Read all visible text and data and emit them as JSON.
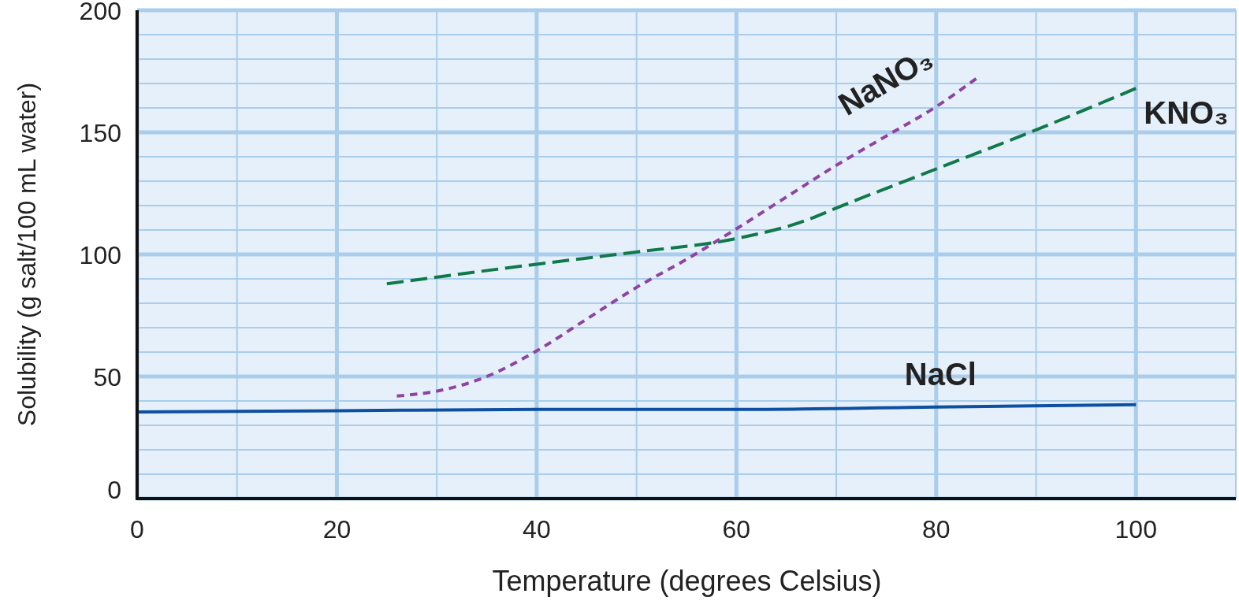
{
  "chart_data": {
    "type": "line",
    "xlabel": "Temperature (degrees Celsius)",
    "ylabel": "Solubility (g salt/100 mL water)",
    "xlim": [
      0,
      110
    ],
    "xticks": [
      0,
      {
        "value": 10,
        "label": null
      },
      20,
      {
        "value": 30,
        "label": null
      },
      40,
      {
        "value": 50,
        "label": null
      },
      60,
      {
        "value": 70,
        "label": null
      },
      80,
      {
        "value": 90,
        "label": null
      },
      100,
      {
        "value": 110,
        "label": null
      }
    ],
    "ylim": [
      0,
      200
    ],
    "yticks": [
      0,
      {
        "value": 10,
        "label": null
      },
      {
        "value": 20,
        "label": null
      },
      {
        "value": 30,
        "label": null
      },
      {
        "value": 40,
        "label": null
      },
      50,
      {
        "value": 60,
        "label": null
      },
      {
        "value": 70,
        "label": null
      },
      {
        "value": 80,
        "label": null
      },
      {
        "value": 90,
        "label": null
      },
      100,
      {
        "value": 110,
        "label": null
      },
      {
        "value": 120,
        "label": null
      },
      {
        "value": 130,
        "label": null
      },
      {
        "value": 140,
        "label": null
      },
      150,
      {
        "value": 160,
        "label": null
      },
      {
        "value": 170,
        "label": null
      },
      {
        "value": 180,
        "label": null
      },
      {
        "value": 190,
        "label": null
      },
      200
    ],
    "grid": true,
    "series": [
      {
        "name": "NaCl",
        "color": "#0d4fa0",
        "line_style": "solid",
        "x": [
          0,
          20,
          40,
          60,
          80,
          100
        ],
        "values": [
          35.5,
          36,
          36.5,
          36.5,
          37.5,
          38.5
        ]
      },
      {
        "name": "KNO₃",
        "color": "#10794a",
        "line_style": "dashed",
        "x": [
          25,
          40,
          50,
          60,
          67,
          70,
          80,
          90,
          100
        ],
        "values": [
          88,
          96,
          101,
          106.5,
          114,
          119,
          135,
          151,
          168
        ]
      },
      {
        "name": "NaNO₃",
        "color": "#8e44a0",
        "line_style": "dotted",
        "x": [
          26,
          30,
          35,
          40,
          45,
          50,
          55,
          60,
          65,
          70,
          75,
          80,
          84
        ],
        "values": [
          42,
          44,
          50,
          60.5,
          73.5,
          86.5,
          98,
          110.5,
          123.5,
          136.5,
          148.5,
          160.5,
          172
        ]
      }
    ]
  }
}
